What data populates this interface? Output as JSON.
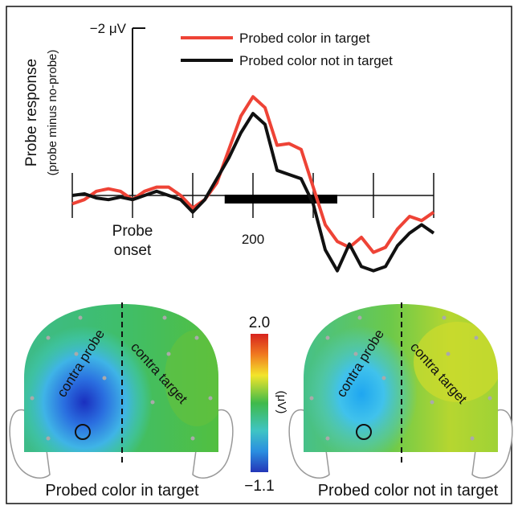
{
  "chart_data": {
    "type": "line",
    "ylabel": "Probe response",
    "ylabel_sub": "(probe minus no-probe)",
    "x": [
      -100,
      -80,
      -60,
      -40,
      -20,
      0,
      20,
      40,
      60,
      80,
      100,
      120,
      140,
      160,
      180,
      200,
      220,
      240,
      260,
      280,
      300,
      320,
      340,
      360,
      380,
      400,
      420,
      440,
      460,
      480,
      500
    ],
    "series": [
      {
        "name": "Probed color in target",
        "color": "#ee4336",
        "values": [
          0.1,
          0.05,
          -0.05,
          -0.08,
          -0.05,
          0.05,
          -0.05,
          -0.1,
          -0.1,
          0.0,
          0.15,
          0.05,
          -0.15,
          -0.55,
          -0.95,
          -1.18,
          -1.05,
          -0.6,
          -0.62,
          -0.55,
          -0.1,
          0.35,
          0.55,
          0.62,
          0.5,
          0.68,
          0.62,
          0.4,
          0.25,
          0.3,
          0.2
        ]
      },
      {
        "name": "Probed color not in target",
        "color": "#111111",
        "values": [
          0.0,
          -0.02,
          0.03,
          0.05,
          0.02,
          0.05,
          0.0,
          -0.05,
          0.0,
          0.05,
          0.2,
          0.05,
          -0.2,
          -0.45,
          -0.75,
          -0.98,
          -0.85,
          -0.3,
          -0.25,
          -0.2,
          0.1,
          0.65,
          0.9,
          0.58,
          0.85,
          0.9,
          0.85,
          0.6,
          0.45,
          0.35,
          0.45
        ]
      }
    ],
    "significance_bar": [
      153,
      340
    ],
    "xlim": [
      -100,
      500
    ],
    "xticks": [
      {
        "value": -100,
        "label": null
      },
      {
        "value": 0,
        "label": "Probe onset"
      },
      {
        "value": 100,
        "label": null
      },
      200,
      {
        "value": 300,
        "label": null
      },
      {
        "value": 400,
        "label": null
      },
      {
        "value": 500,
        "label": null
      }
    ],
    "ylim": [
      1,
      -2
    ],
    "yticks": [
      {
        "value": -2,
        "label": "−2 μV"
      }
    ],
    "legend": "top"
  },
  "topomaps": {
    "maps": [
      {
        "title": "Probed color in target",
        "labels": [
          "contra probe",
          "contra target"
        ]
      },
      {
        "title": "Probed color not in target",
        "labels": [
          "contra probe",
          "contra target"
        ]
      }
    ],
    "colorbar": {
      "max": {
        "value": 2,
        "label": "2.0"
      },
      "min": {
        "value": -1.1,
        "label": "−1.1"
      },
      "unit": "(μV)"
    }
  }
}
